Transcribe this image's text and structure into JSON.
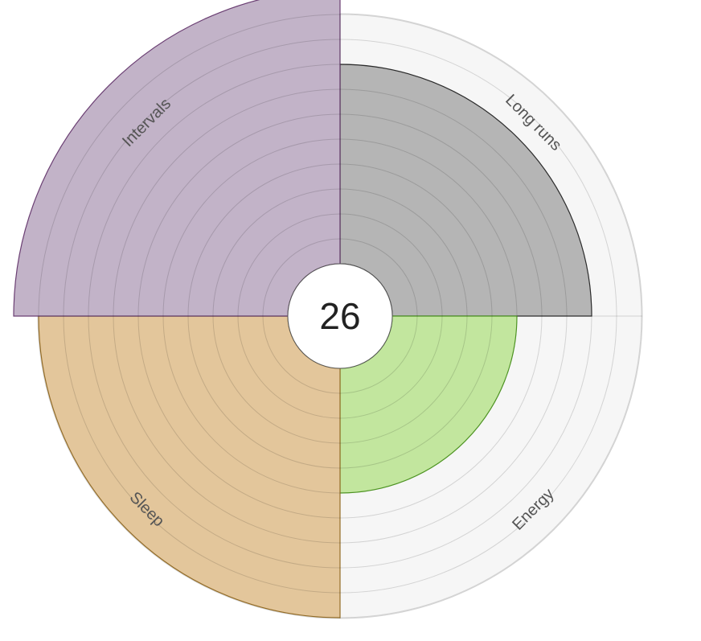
{
  "chart_data": {
    "type": "polar-area",
    "center_value": "26",
    "scale_max": 11,
    "ring_steps": [
      0,
      1,
      2,
      3,
      4,
      5,
      6,
      7,
      8,
      9,
      10,
      11,
      12
    ],
    "categories": [
      "Long runs",
      "Energy",
      "Sleep",
      "Intervals"
    ],
    "values": [
      8,
      5,
      10,
      11
    ],
    "colors": {
      "Long runs": {
        "fill": "#b5b5b5",
        "stroke": "#333333"
      },
      "Energy": {
        "fill": "#c2e69e",
        "stroke": "#5aa82a"
      },
      "Sleep": {
        "fill": "#e3c69b",
        "stroke": "#a87c2e"
      },
      "Intervals": {
        "fill": "#c2b3c8",
        "stroke": "#6b3f73"
      }
    },
    "grid": true,
    "legend": "none"
  }
}
